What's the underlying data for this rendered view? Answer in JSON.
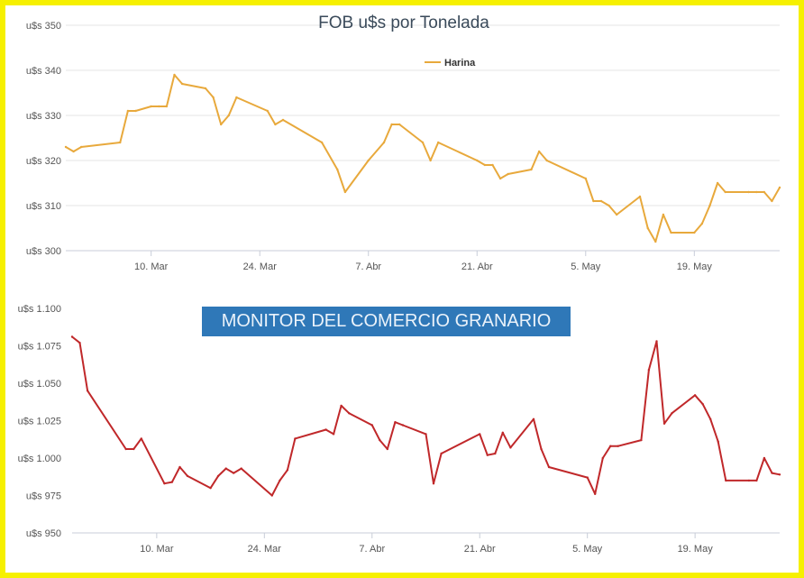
{
  "colors": {
    "frame": "#f6f000",
    "harina": "#e8a93c",
    "lower": "#c0282a",
    "banner": "#2f78b8"
  },
  "banner": {
    "text": "MONITOR DEL COMERCIO GRANARIO"
  },
  "chart_data": [
    {
      "type": "line",
      "title": "FOB u$s por Tonelada",
      "legend": {
        "position": "top-right",
        "entries": [
          "Harina"
        ]
      },
      "grid": true,
      "x_ticks": [
        "10. Mar",
        "24. Mar",
        "7. Abr",
        "21. Abr",
        "5. May",
        "19. May"
      ],
      "y_ticks": [
        "u$s 300",
        "u$s 310",
        "u$s 320",
        "u$s 330",
        "u$s 340",
        "u$s 350"
      ],
      "xlim": [
        "2014-02-27",
        "2014-05-30"
      ],
      "ylim": [
        300,
        350
      ],
      "series": [
        {
          "name": "Harina",
          "x": [
            "2014-02-27",
            "2014-02-28",
            "2014-03-01",
            "2014-03-06",
            "2014-03-07",
            "2014-03-08",
            "2014-03-10",
            "2014-03-11",
            "2014-03-12",
            "2014-03-13",
            "2014-03-14",
            "2014-03-17",
            "2014-03-18",
            "2014-03-19",
            "2014-03-20",
            "2014-03-21",
            "2014-03-25",
            "2014-03-26",
            "2014-03-27",
            "2014-04-01",
            "2014-04-03",
            "2014-04-04",
            "2014-04-07",
            "2014-04-09",
            "2014-04-10",
            "2014-04-11",
            "2014-04-14",
            "2014-04-15",
            "2014-04-16",
            "2014-04-21",
            "2014-04-22",
            "2014-04-23",
            "2014-04-24",
            "2014-04-25",
            "2014-04-28",
            "2014-04-29",
            "2014-04-30",
            "2014-05-05",
            "2014-05-06",
            "2014-05-07",
            "2014-05-08",
            "2014-05-09",
            "2014-05-12",
            "2014-05-13",
            "2014-05-14",
            "2014-05-15",
            "2014-05-16",
            "2014-05-19",
            "2014-05-20",
            "2014-05-21",
            "2014-05-22",
            "2014-05-23",
            "2014-05-26",
            "2014-05-27",
            "2014-05-28",
            "2014-05-29",
            "2014-05-30"
          ],
          "y": [
            323,
            322,
            323,
            324,
            331,
            331,
            332,
            332,
            332,
            339,
            337,
            336,
            334,
            328,
            330,
            334,
            331,
            328,
            329,
            324,
            318,
            313,
            320,
            324,
            328,
            328,
            324,
            320,
            324,
            320,
            319,
            319,
            316,
            317,
            318,
            322,
            320,
            316,
            311,
            311,
            310,
            308,
            312,
            305,
            302,
            308,
            304,
            304,
            306,
            310,
            315,
            313,
            313,
            313,
            313,
            311,
            314
          ]
        }
      ]
    },
    {
      "type": "line",
      "grid": false,
      "x_ticks": [
        "10. Mar",
        "24. Mar",
        "7. Abr",
        "21. Abr",
        "5. May",
        "19. May"
      ],
      "y_ticks": [
        "u$s 950",
        "u$s 975",
        "u$s 1.000",
        "u$s 1.025",
        "u$s 1.050",
        "u$s 1.075",
        "u$s 1.100"
      ],
      "xlim": [
        "2014-02-27",
        "2014-05-30"
      ],
      "ylim": [
        950,
        1100
      ],
      "series": [
        {
          "x": [
            "2014-02-27",
            "2014-02-28",
            "2014-03-01",
            "2014-03-06",
            "2014-03-07",
            "2014-03-08",
            "2014-03-11",
            "2014-03-12",
            "2014-03-13",
            "2014-03-14",
            "2014-03-17",
            "2014-03-18",
            "2014-03-19",
            "2014-03-20",
            "2014-03-21",
            "2014-03-25",
            "2014-03-26",
            "2014-03-27",
            "2014-03-28",
            "2014-04-01",
            "2014-04-02",
            "2014-04-03",
            "2014-04-04",
            "2014-04-07",
            "2014-04-08",
            "2014-04-09",
            "2014-04-10",
            "2014-04-11",
            "2014-04-14",
            "2014-04-15",
            "2014-04-16",
            "2014-04-21",
            "2014-04-22",
            "2014-04-23",
            "2014-04-24",
            "2014-04-25",
            "2014-04-28",
            "2014-04-29",
            "2014-04-30",
            "2014-05-05",
            "2014-05-06",
            "2014-05-07",
            "2014-05-08",
            "2014-05-09",
            "2014-05-12",
            "2014-05-13",
            "2014-05-14",
            "2014-05-15",
            "2014-05-16",
            "2014-05-19",
            "2014-05-20",
            "2014-05-21",
            "2014-05-22",
            "2014-05-23",
            "2014-05-26",
            "2014-05-27",
            "2014-05-28",
            "2014-05-29",
            "2014-05-30"
          ],
          "y": [
            1081,
            1077,
            1045,
            1006,
            1006,
            1013,
            983,
            984,
            994,
            988,
            980,
            988,
            993,
            990,
            993,
            975,
            985,
            992,
            1013,
            1019,
            1016,
            1035,
            1030,
            1022,
            1012,
            1006,
            1024,
            1022,
            1016,
            983,
            1003,
            1016,
            1002,
            1003,
            1017,
            1007,
            1026,
            1006,
            994,
            987,
            976,
            1000,
            1008,
            1008,
            1012,
            1059,
            1078,
            1023,
            1030,
            1042,
            1036,
            1026,
            1011,
            985,
            985,
            985,
            1000,
            990,
            989
          ]
        }
      ]
    }
  ]
}
